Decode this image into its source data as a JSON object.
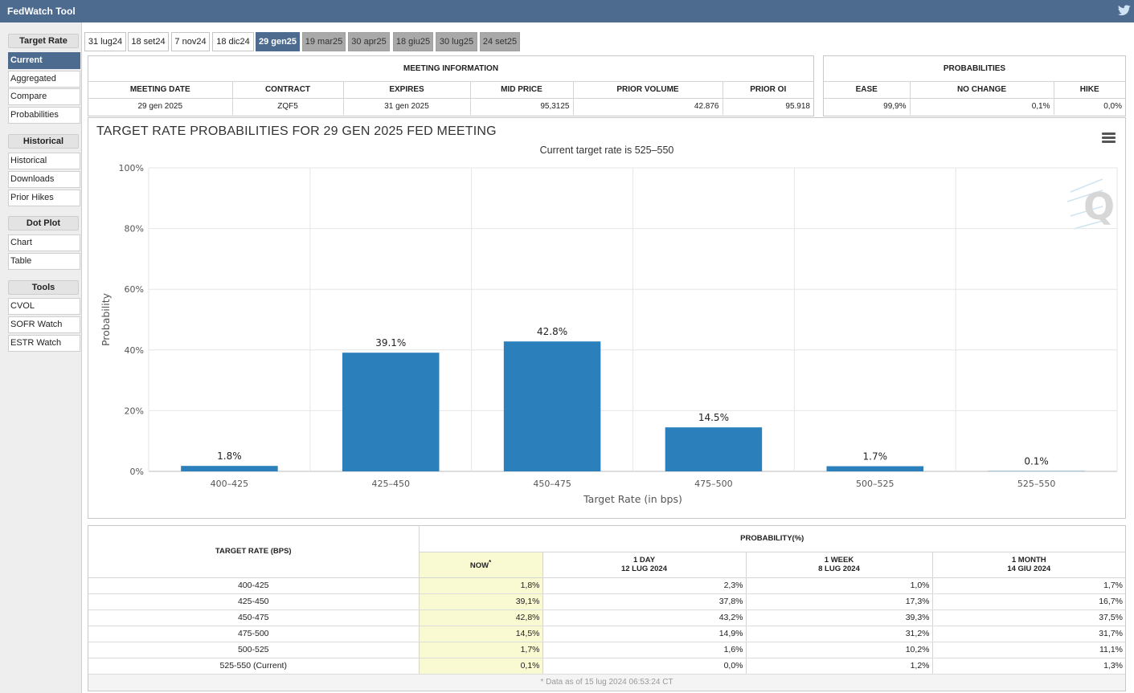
{
  "app": {
    "title": "FedWatch Tool"
  },
  "sidebar": {
    "sections": [
      {
        "header": "Target Rate",
        "items": [
          "Current",
          "Aggregated",
          "Compare",
          "Probabilities"
        ]
      },
      {
        "header": "Historical",
        "items": [
          "Historical",
          "Downloads",
          "Prior Hikes"
        ]
      },
      {
        "header": "Dot Plot",
        "items": [
          "Chart",
          "Table"
        ]
      },
      {
        "header": "Tools",
        "items": [
          "CVOL",
          "SOFR Watch",
          "ESTR Watch"
        ]
      }
    ],
    "active_item": "Current"
  },
  "tabs": [
    "31 lug24",
    "18 set24",
    "7 nov24",
    "18 dic24",
    "29 gen25",
    "19 mar25",
    "30 apr25",
    "18 giu25",
    "30 lug25",
    "24 set25"
  ],
  "active_tab": "29 gen25",
  "meeting_info": {
    "title": "MEETING INFORMATION",
    "headers": [
      "MEETING DATE",
      "CONTRACT",
      "EXPIRES",
      "MID PRICE",
      "PRIOR VOLUME",
      "PRIOR OI"
    ],
    "values": [
      "29 gen 2025",
      "ZQF5",
      "31 gen 2025",
      "95,3125",
      "42.876",
      "95.918"
    ]
  },
  "probabilities": {
    "title": "PROBABILITIES",
    "headers": [
      "EASE",
      "NO CHANGE",
      "HIKE"
    ],
    "values": [
      "99,9%",
      "0,1%",
      "0,0%"
    ]
  },
  "chart_data": {
    "type": "bar",
    "title": "TARGET RATE PROBABILITIES FOR 29 GEN 2025 FED MEETING",
    "subtitle": "Current target rate is 525–550",
    "xlabel": "Target Rate (in bps)",
    "ylabel": "Probability",
    "categories": [
      "400–425",
      "425–450",
      "450–475",
      "475–500",
      "500–525",
      "525–550"
    ],
    "values": [
      1.8,
      39.1,
      42.8,
      14.5,
      1.7,
      0.1
    ],
    "data_labels": [
      "1.8%",
      "39.1%",
      "42.8%",
      "14.5%",
      "1.7%",
      "0.1%"
    ],
    "y_ticks": [
      "0%",
      "20%",
      "40%",
      "60%",
      "80%",
      "100%"
    ],
    "ylim": [
      0,
      100
    ],
    "grid": true,
    "bar_color": "#2b7fba"
  },
  "prob_table": {
    "rate_header": "TARGET RATE (BPS)",
    "prob_header": "PROBABILITY(%)",
    "columns": [
      {
        "line1": "NOW",
        "line2": ""
      },
      {
        "line1": "1 DAY",
        "line2": "12 LUG 2024"
      },
      {
        "line1": "1 WEEK",
        "line2": "8 LUG 2024"
      },
      {
        "line1": "1 MONTH",
        "line2": "14 GIU 2024"
      }
    ],
    "now_marker": "*",
    "rows": [
      {
        "rate": "400-425",
        "values": [
          "1,8%",
          "2,3%",
          "1,0%",
          "1,7%"
        ]
      },
      {
        "rate": "425-450",
        "values": [
          "39,1%",
          "37,8%",
          "17,3%",
          "16,7%"
        ]
      },
      {
        "rate": "450-475",
        "values": [
          "42,8%",
          "43,2%",
          "39,3%",
          "37,5%"
        ]
      },
      {
        "rate": "475-500",
        "values": [
          "14,5%",
          "14,9%",
          "31,2%",
          "31,7%"
        ]
      },
      {
        "rate": "500-525",
        "values": [
          "1,7%",
          "1,6%",
          "10,2%",
          "11,1%"
        ]
      },
      {
        "rate": "525-550 (Current)",
        "values": [
          "0,1%",
          "0,0%",
          "1,2%",
          "1,3%"
        ]
      }
    ],
    "footnote": "* Data as of 15 lug 2024 06:53:24 CT"
  },
  "colors": {
    "header_bg": "#4d6a8f",
    "bar": "#2b7fba",
    "now_col": "#fafad2"
  }
}
